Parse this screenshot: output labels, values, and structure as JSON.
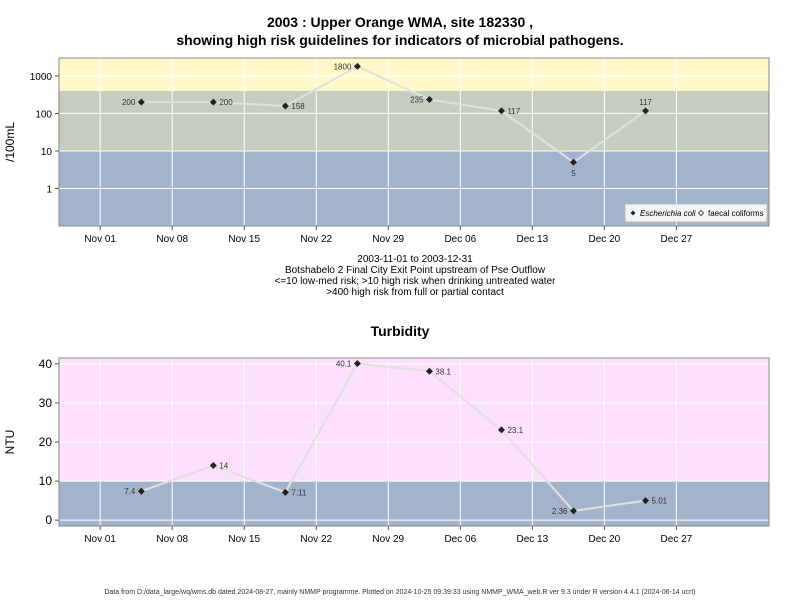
{
  "title_line1": "2003 : Upper Orange WMA, site 182330 ,",
  "title_line2": "showing high risk guidelines for indicators of microbial pathogens.",
  "caption": {
    "date_range": "2003-11-01 to 2003-12-31",
    "site_name": "Botshabelo 2 Final City Exit Point upstream of Pse Outflow",
    "risk_line1": "<=10 low-med risk; >10 high risk when drinking untreated water",
    "risk_line2": ">400 high risk from full or partial contact"
  },
  "footer": "Data from D:/data_large/wq/wms.db dated 2024-08-27, mainly NMMP programme. Plotted on 2024-10-25 09:39:33 using NMMP_WMA_web.R ver 9.3 under R version 4.4.1 (2024-06-14 ucrt)",
  "colors": {
    "band_blue": "#a3b3cc",
    "band_green": "#c5cdbf",
    "band_yellow": "#fff8c8",
    "band_pink": "#fde0fd",
    "line": "#e0e0e0",
    "point": "#222222"
  },
  "chart_data": [
    {
      "type": "line",
      "title": "",
      "ylabel": "/100mL",
      "yscale": "log",
      "ylim": [
        0.1,
        3000
      ],
      "yticks": [
        1,
        10,
        100,
        1000
      ],
      "ytick_labels": [
        "1",
        "10",
        "100",
        "1000"
      ],
      "x_date_range": [
        "2003-10-28",
        "2004-01-05"
      ],
      "xticks": [
        "2003-11-01",
        "2003-11-08",
        "2003-11-15",
        "2003-11-22",
        "2003-11-29",
        "2003-12-06",
        "2003-12-13",
        "2003-12-20",
        "2003-12-27"
      ],
      "xtick_labels": [
        "Nov 01",
        "Nov 08",
        "Nov 15",
        "Nov 22",
        "Nov 29",
        "Dec 06",
        "Dec 13",
        "Dec 20",
        "Dec 27"
      ],
      "bands": [
        {
          "from": 0.1,
          "to": 10,
          "color": "band_blue"
        },
        {
          "from": 10,
          "to": 400,
          "color": "band_green"
        },
        {
          "from": 400,
          "to": 3000,
          "color": "band_yellow"
        }
      ],
      "series": [
        {
          "name": "Escherichia coli",
          "x": [
            "2003-11-05",
            "2003-11-12",
            "2003-11-19",
            "2003-11-26",
            "2003-12-03",
            "2003-12-10",
            "2003-12-17",
            "2003-12-24"
          ],
          "y": [
            200,
            200,
            158,
            1800,
            235,
            117,
            5,
            117
          ],
          "labels": [
            "200",
            "200",
            "158",
            "1800",
            "235",
            "117",
            "5",
            "117"
          ],
          "label_pos": [
            "left",
            "right",
            "right",
            "left",
            "left",
            "right",
            "below",
            "above"
          ]
        }
      ],
      "legend": {
        "placement": "bottom-right",
        "entries": [
          "Escherichia coli",
          "faecal coliforms"
        ]
      }
    },
    {
      "type": "line",
      "title": "Turbidity",
      "ylabel": "NTU",
      "yscale": "linear",
      "ylim": [
        -1.5,
        41.5
      ],
      "yticks": [
        0,
        10,
        20,
        30,
        40
      ],
      "ytick_labels": [
        "0",
        "10",
        "20",
        "30",
        "40"
      ],
      "x_date_range": [
        "2003-10-28",
        "2004-01-05"
      ],
      "xticks": [
        "2003-11-01",
        "2003-11-08",
        "2003-11-15",
        "2003-11-22",
        "2003-11-29",
        "2003-12-06",
        "2003-12-13",
        "2003-12-20",
        "2003-12-27"
      ],
      "xtick_labels": [
        "Nov 01",
        "Nov 08",
        "Nov 15",
        "Nov 22",
        "Nov 29",
        "Dec 06",
        "Dec 13",
        "Dec 20",
        "Dec 27"
      ],
      "bands": [
        {
          "from": -1.5,
          "to": 10,
          "color": "band_blue"
        },
        {
          "from": 10,
          "to": 41.5,
          "color": "band_pink"
        }
      ],
      "series": [
        {
          "name": "",
          "x": [
            "2003-11-05",
            "2003-11-12",
            "2003-11-19",
            "2003-11-26",
            "2003-12-03",
            "2003-12-10",
            "2003-12-17",
            "2003-12-24"
          ],
          "y": [
            7.4,
            14,
            7.11,
            40.1,
            38.1,
            23.1,
            2.36,
            5.01
          ],
          "labels": [
            "7.4",
            "14",
            "7.11",
            "40.1",
            "38.1",
            "23.1",
            "2.36",
            "5.01"
          ],
          "label_pos": [
            "left",
            "right",
            "right",
            "left",
            "right",
            "right",
            "left",
            "right"
          ]
        }
      ]
    }
  ]
}
